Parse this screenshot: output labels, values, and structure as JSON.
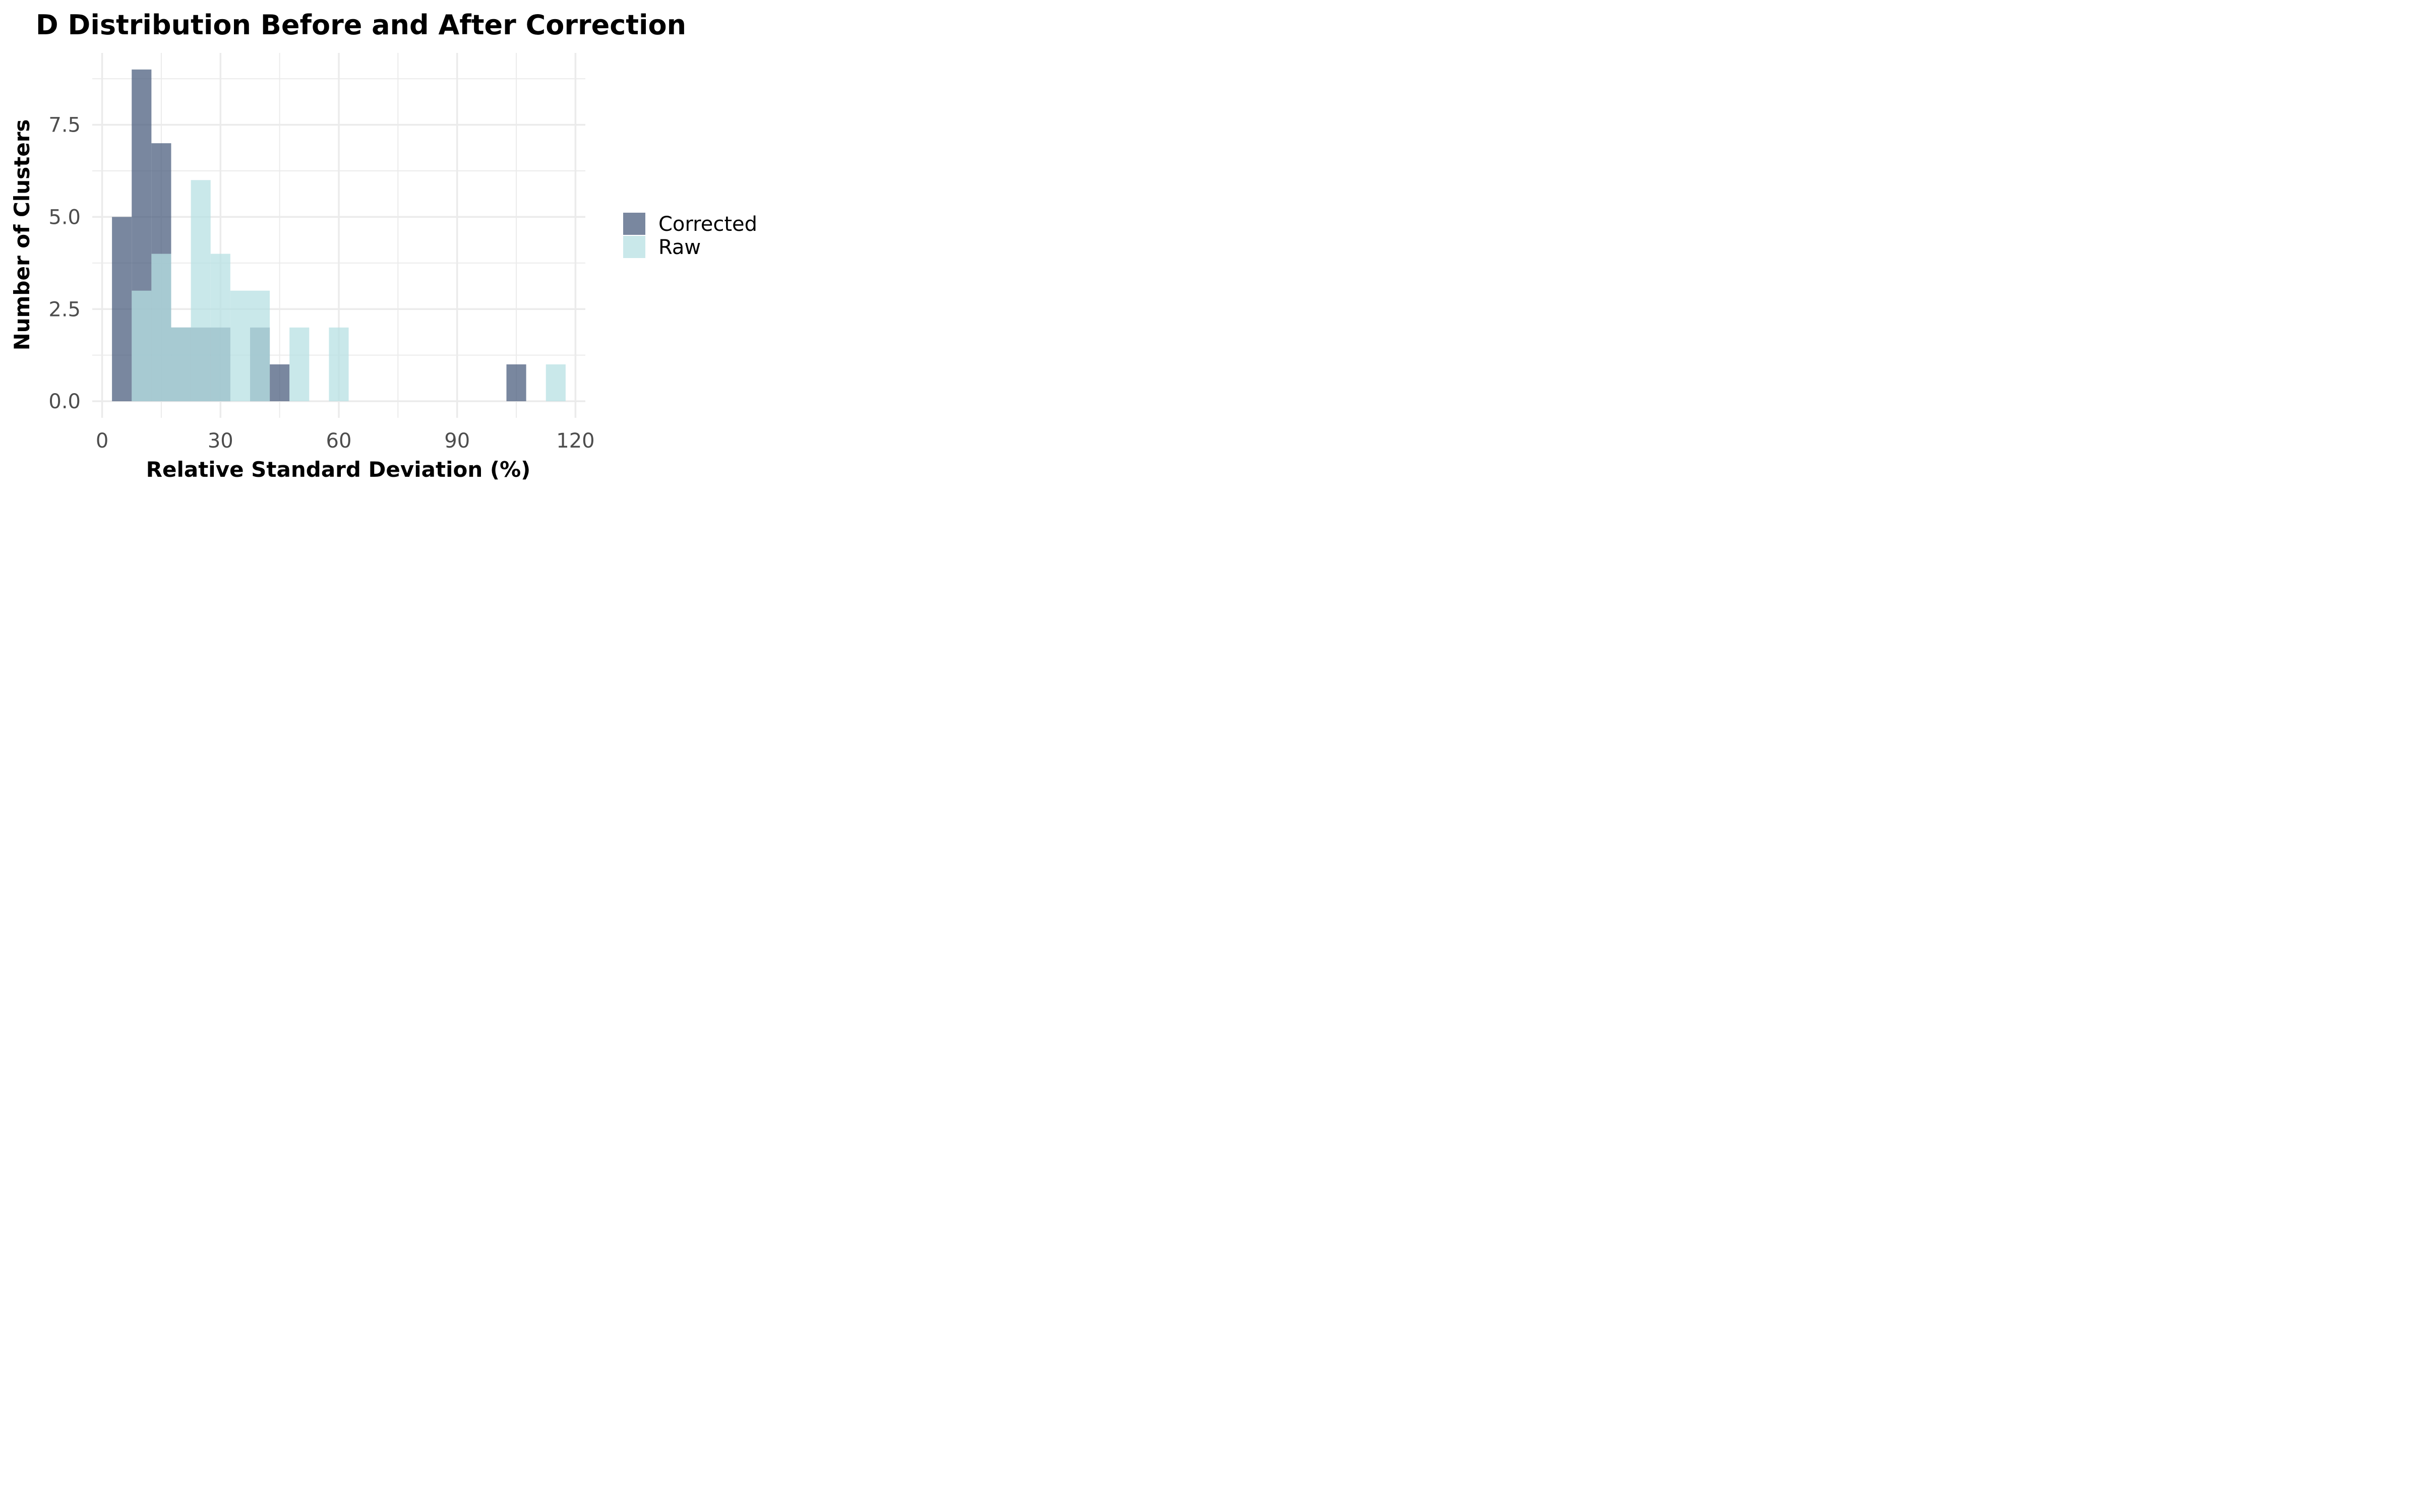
{
  "chart_data": {
    "type": "histogram",
    "title": "D Distribution Before and After Correction",
    "xlabel": "Relative Standard Deviation (%)",
    "ylabel": "Number of Clusters",
    "xlim": [
      -2.5,
      122.5
    ],
    "ylim": [
      -0.45,
      9.45
    ],
    "x_ticks": [
      0,
      30,
      60,
      90,
      120
    ],
    "x_tick_labels": [
      "0",
      "30",
      "60",
      "90",
      "120"
    ],
    "x_minor": [
      15,
      45,
      75,
      105
    ],
    "y_ticks": [
      0,
      2.5,
      5,
      7.5
    ],
    "y_tick_labels": [
      "0.0",
      "2.5",
      "5.0",
      "7.5"
    ],
    "y_minor": [
      1.25,
      3.75,
      6.25,
      8.75
    ],
    "bin_width": 5,
    "grid": true,
    "legend_position": "right",
    "series": [
      {
        "name": "Corrected",
        "color": "#4c5f7f",
        "opacity": 0.75,
        "bins": [
          {
            "x0": 2.5,
            "x1": 7.5,
            "count": 5
          },
          {
            "x0": 7.5,
            "x1": 12.5,
            "count": 9
          },
          {
            "x0": 12.5,
            "x1": 17.5,
            "count": 7
          },
          {
            "x0": 17.5,
            "x1": 22.5,
            "count": 2
          },
          {
            "x0": 22.5,
            "x1": 27.5,
            "count": 2
          },
          {
            "x0": 27.5,
            "x1": 32.5,
            "count": 2
          },
          {
            "x0": 37.5,
            "x1": 42.5,
            "count": 2
          },
          {
            "x0": 42.5,
            "x1": 47.5,
            "count": 1
          },
          {
            "x0": 102.5,
            "x1": 107.5,
            "count": 1
          }
        ]
      },
      {
        "name": "Raw",
        "color": "#b7e0e3",
        "opacity": 0.75,
        "bins": [
          {
            "x0": 7.5,
            "x1": 12.5,
            "count": 3
          },
          {
            "x0": 12.5,
            "x1": 17.5,
            "count": 4
          },
          {
            "x0": 17.5,
            "x1": 22.5,
            "count": 2
          },
          {
            "x0": 22.5,
            "x1": 27.5,
            "count": 6
          },
          {
            "x0": 27.5,
            "x1": 32.5,
            "count": 4
          },
          {
            "x0": 32.5,
            "x1": 37.5,
            "count": 3
          },
          {
            "x0": 37.5,
            "x1": 42.5,
            "count": 3
          },
          {
            "x0": 47.5,
            "x1": 52.5,
            "count": 2
          },
          {
            "x0": 57.5,
            "x1": 62.5,
            "count": 2
          },
          {
            "x0": 112.5,
            "x1": 117.5,
            "count": 1
          }
        ]
      }
    ]
  }
}
